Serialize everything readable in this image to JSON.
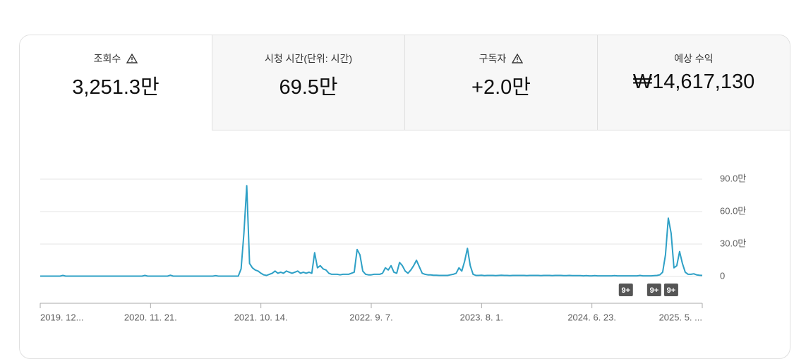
{
  "tabs": [
    {
      "label": "조회수",
      "value": "3,251.3만",
      "warning": true
    },
    {
      "label": "시청 시간(단위: 시간)",
      "value": "69.5만",
      "warning": false
    },
    {
      "label": "구독자",
      "value": "+2.0만",
      "warning": true
    },
    {
      "label": "예상 수익",
      "value": "₩14,617,130",
      "warning": false
    }
  ],
  "selected_tab": 0,
  "chart_data": {
    "type": "line",
    "xlim": [
      0,
      234
    ],
    "xticks": [
      {
        "value": 0,
        "label": "2019. 12..."
      },
      {
        "value": 39,
        "label": "2020. 11. 21."
      },
      {
        "value": 78,
        "label": "2021. 10. 14."
      },
      {
        "value": 117,
        "label": "2022. 9. 7."
      },
      {
        "value": 156,
        "label": "2023. 8. 1."
      },
      {
        "value": 195,
        "label": "2024. 6. 23."
      },
      {
        "value": 234,
        "label": "2025. 5. ..."
      }
    ],
    "ylim": [
      0,
      90
    ],
    "yticks": [
      0,
      {
        "value": 30,
        "label": "30.0만"
      },
      {
        "value": 60,
        "label": "60.0만"
      },
      {
        "value": 90,
        "label": "90.0만"
      }
    ],
    "grid": true,
    "series": [
      {
        "color": "#2ea0c6",
        "values": [
          0.3,
          0.3,
          0.3,
          0.3,
          0.3,
          0.3,
          0.3,
          0.3,
          1,
          0.3,
          0.3,
          0.3,
          0.3,
          0.3,
          0.3,
          0.3,
          0.3,
          0.3,
          0.3,
          0.3,
          0.3,
          0.3,
          0.3,
          0.3,
          0.3,
          0.3,
          0.3,
          0.3,
          0.3,
          0.3,
          0.3,
          0.3,
          0.3,
          0.3,
          0.3,
          0.3,
          0.3,
          1,
          0.3,
          0.3,
          0.3,
          0.3,
          0.3,
          0.3,
          0.3,
          0.3,
          1.2,
          0.3,
          0.3,
          0.3,
          0.3,
          0.3,
          0.3,
          0.3,
          0.3,
          0.3,
          0.3,
          0.3,
          0.3,
          0.3,
          0.3,
          0.3,
          0.8,
          0.3,
          0.3,
          0.3,
          0.3,
          0.3,
          0.3,
          0.3,
          0.3,
          7,
          40,
          84,
          12,
          8,
          6,
          5,
          3,
          1.5,
          1,
          2,
          3,
          5,
          3,
          4,
          3,
          5,
          4,
          3,
          4,
          5,
          3,
          4,
          3,
          4,
          3,
          22,
          8,
          10,
          7,
          6,
          3,
          2,
          2,
          2,
          1.5,
          2,
          2,
          2,
          3,
          4,
          25,
          20,
          5,
          2,
          1.5,
          1.5,
          2,
          2,
          2,
          3,
          8,
          6,
          10,
          4,
          3,
          13,
          10,
          5,
          3,
          6,
          10,
          15,
          9,
          3,
          2,
          1.5,
          1.5,
          1.2,
          1.2,
          1,
          1,
          1,
          1,
          1.5,
          2,
          3,
          8,
          5,
          14,
          26,
          10,
          2,
          1,
          1,
          1.2,
          0.8,
          1,
          1,
          1,
          0.8,
          1,
          1.2,
          1,
          1,
          0.8,
          1,
          1,
          1,
          1,
          1,
          0.8,
          1,
          1,
          1,
          1,
          0.8,
          1,
          1,
          1,
          0.8,
          1,
          1,
          1,
          0.8,
          0.8,
          1,
          0.8,
          0.8,
          0.8,
          0.8,
          0.6,
          0.8,
          0.6,
          0.6,
          0.8,
          0.6,
          0.6,
          0.6,
          0.6,
          0.6,
          0.6,
          0.8,
          0.6,
          0.6,
          0.6,
          0.6,
          0.6,
          0.6,
          0.6,
          0.6,
          1,
          0.6,
          0.6,
          0.6,
          0.6,
          0.8,
          1,
          1.5,
          4,
          20,
          54,
          40,
          8,
          10,
          23,
          12,
          4,
          2,
          2,
          2.5,
          1.5,
          1.2,
          1
        ]
      }
    ],
    "annotations": [
      {
        "label": "9+",
        "x": 207
      },
      {
        "label": "9+",
        "x": 217
      },
      {
        "label": "9+",
        "x": 223
      }
    ]
  }
}
